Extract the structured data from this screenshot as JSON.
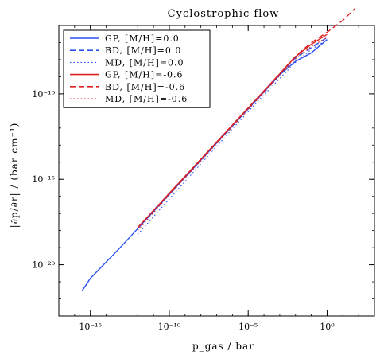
{
  "chart_data": {
    "type": "line",
    "title": "Cyclostrophic flow",
    "xlabel": "p_gas / bar",
    "ylabel": "|∂p/∂r| / (bar cm⁻¹)",
    "x_scale": "log",
    "y_scale": "log",
    "xlim": [
      1e-17,
      1000.0
    ],
    "ylim": [
      1e-23,
      1e-06
    ],
    "x_ticks": [
      {
        "value": 1e-15,
        "label": "10⁻¹⁵"
      },
      {
        "value": 1e-10,
        "label": "10⁻¹⁰"
      },
      {
        "value": 1e-05,
        "label": "10⁻⁵"
      },
      {
        "value": 1,
        "label": "10⁰"
      }
    ],
    "y_ticks": [
      {
        "value": 1e-20,
        "label": "10⁻²⁰"
      },
      {
        "value": 1e-15,
        "label": "10⁻¹⁵"
      },
      {
        "value": 1e-10,
        "label": "10⁻¹⁰"
      }
    ],
    "grid": false,
    "legend_position": "top-left",
    "series": [
      {
        "name": "GP, [M/H]=0.0",
        "color": "#2a50f0",
        "dash": "solid",
        "dotted": false,
        "x": [
          3e-16,
          1e-15,
          1e-13,
          1e-11,
          1e-09,
          1e-07,
          1e-05,
          0.001,
          0.01,
          0.1,
          1
        ],
        "y": [
          3e-22,
          1.6e-21,
          1.3e-19,
          1.3e-17,
          1.3e-15,
          1.3e-13,
          1.3e-11,
          1.3e-09,
          8e-09,
          2.5e-08,
          1.5e-07
        ]
      },
      {
        "name": "BD, [M/H]=0.0",
        "color": "#2a50f0",
        "dash": "dashed",
        "dotted": false,
        "x": [
          1e-12,
          1e-10,
          1e-08,
          1e-06,
          0.0001,
          0.01,
          0.1,
          1
        ],
        "y": [
          1.5e-18,
          1.5e-16,
          1.5e-14,
          1.5e-12,
          1.5e-10,
          1.3e-08,
          5e-08,
          2e-07
        ]
      },
      {
        "name": "MD, [M/H]=0.0",
        "color": "#2a50f0",
        "dash": "dotted",
        "dotted": true,
        "x": [
          1e-12,
          1e-10,
          1e-08,
          1e-06,
          0.0001,
          0.01,
          0.1,
          1
        ],
        "y": [
          6e-19,
          7e-17,
          8e-15,
          9e-13,
          9e-11,
          7e-09,
          4e-08,
          1.5e-07
        ]
      },
      {
        "name": "GP, [M/H]=-0.6",
        "color": "#e02020",
        "dash": "solid",
        "dotted": false,
        "x": [
          1e-12,
          1e-10,
          1e-08,
          1e-06,
          0.0001,
          0.01,
          0.1,
          1
        ],
        "y": [
          1.5e-18,
          1.5e-16,
          1.5e-14,
          1.5e-12,
          1.5e-10,
          1.5e-08,
          8e-08,
          3e-07
        ]
      },
      {
        "name": "BD, [M/H]=-0.6",
        "color": "#e02020",
        "dash": "dashed",
        "dotted": false,
        "x": [
          1e-12,
          1e-10,
          1e-08,
          1e-06,
          0.0001,
          0.01,
          0.1,
          1,
          10,
          60
        ],
        "y": [
          1.5e-18,
          1.5e-16,
          1.5e-14,
          1.5e-12,
          1.5e-10,
          1.6e-08,
          1e-07,
          4e-07,
          2e-06,
          1e-05
        ]
      },
      {
        "name": "MD, [M/H]=-0.6",
        "color": "#e02020",
        "dash": "dotted",
        "dotted": true,
        "x": [
          1e-12,
          1e-10,
          1e-08,
          1e-06,
          0.0001,
          0.01,
          0.1,
          1
        ],
        "y": [
          1e-18,
          1.2e-16,
          1.2e-14,
          1.2e-12,
          1.2e-10,
          1.1e-08,
          6e-08,
          2e-07
        ]
      }
    ]
  }
}
